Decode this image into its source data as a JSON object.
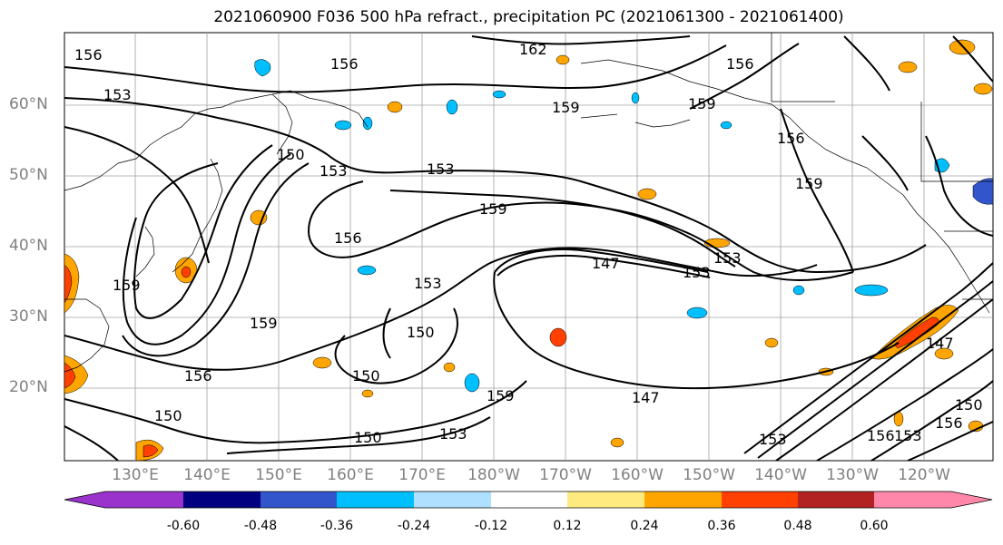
{
  "title": "2021060900 F036 500 hPa refract., precipitation PC (2021061300 - 2021061400)",
  "lat_labels": [
    "60°N",
    "50°N",
    "40°N",
    "30°N",
    "20°N"
  ],
  "lon_labels": [
    "130°E",
    "140°E",
    "150°E",
    "160°E",
    "170°E",
    "180°W",
    "170°W",
    "160°W",
    "150°W",
    "140°W",
    "130°W",
    "120°W"
  ],
  "contour_labels": [
    "156",
    "153",
    "150",
    "153",
    "159",
    "150",
    "153",
    "153",
    "159",
    "156",
    "159",
    "147",
    "153",
    "150",
    "156",
    "150",
    "159",
    "147",
    "150",
    "153",
    "156",
    "159",
    "162",
    "156",
    "159",
    "156",
    "159",
    "153",
    "147",
    "150",
    "153",
    "156",
    "153",
    "156"
  ],
  "colorbar": {
    "ticks": [
      "-0.60",
      "-0.48",
      "-0.36",
      "-0.24",
      "-0.12",
      "0.12",
      "0.24",
      "0.36",
      "0.48",
      "0.60"
    ],
    "colors": [
      "#9933cc",
      "#000080",
      "#3355cc",
      "#00bfff",
      "#b0e0ff",
      "#ffffff",
      "#ffea80",
      "#ffa500",
      "#ff4000",
      "#b22222",
      "#ff88aa"
    ]
  }
}
